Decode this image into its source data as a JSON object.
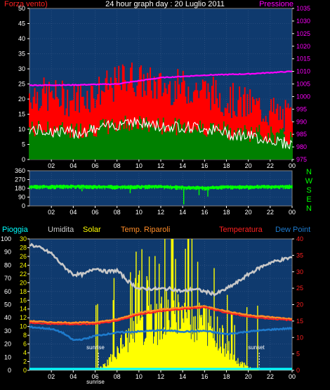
{
  "title": "24 hour graph day : 20 Luglio 2011",
  "colors": {
    "plot_bg": "#0f3a6e",
    "grid": "#3a5a8a",
    "wind_avg": "#008000",
    "wind_gust": "#ff0000",
    "wind_mean": "#ffffff",
    "pressure": "#ff00ff",
    "direction": "#00ff00",
    "tick": "#ffffff",
    "humidity": "#c8c8c8",
    "solar": "#ffff00",
    "temp_riparo": "#ff8c28",
    "temperatura": "#ff2020",
    "dew": "#1e7acc",
    "rain": "#00ffff"
  },
  "x_ticks": [
    "02",
    "04",
    "06",
    "08",
    "10",
    "12",
    "14",
    "16",
    "18",
    "20",
    "22",
    "00"
  ],
  "top": {
    "left_label": "Forza vento)",
    "right_label": "Pressione",
    "left_ticks": [
      "0",
      "5",
      "10",
      "15",
      "20",
      "25",
      "30",
      "35",
      "40",
      "45",
      "50"
    ],
    "right_ticks": [
      "975",
      "980",
      "985",
      "990",
      "995",
      "1000",
      "1005",
      "1010",
      "1015",
      "1020",
      "1025",
      "1030",
      "1035"
    ]
  },
  "mid": {
    "ticks": [
      "0",
      "90",
      "180",
      "270",
      "360"
    ],
    "compass": [
      "N",
      "W",
      "S",
      "E",
      "N"
    ]
  },
  "bottom": {
    "legend": [
      "Pioggia",
      "Umidita",
      "Solar",
      "Temp. Riparoli",
      "Temperatura",
      "Dew Point"
    ],
    "left_ticks": [
      "0",
      "10",
      "20",
      "30",
      "40",
      "50",
      "60",
      "70",
      "80",
      "90",
      "100"
    ],
    "solar_ticks": [
      "0",
      "2",
      "4",
      "6",
      "8",
      "10",
      "12",
      "14",
      "16",
      "18",
      "20",
      "22",
      "24",
      "26",
      "28",
      "30"
    ],
    "right_ticks": [
      "0",
      "5",
      "10",
      "15",
      "20",
      "25",
      "30",
      "35",
      "40"
    ],
    "sunrise": "sunrise",
    "sunset": "sunset",
    "sunrise_axis_label": "sunrise"
  },
  "chart_data": [
    {
      "type": "line",
      "xlabel": "",
      "ylabel": "Forza vento)",
      "x_range": [
        0,
        24
      ],
      "ylim": [
        0,
        50
      ],
      "y2lim": [
        975,
        1035
      ],
      "series": [
        {
          "name": "Forza vento)",
          "axis": "left",
          "x": [
            0,
            2,
            4,
            6,
            8,
            9,
            10,
            12,
            14,
            16,
            18,
            20,
            22,
            24
          ],
          "values": [
            18,
            17,
            16,
            18,
            21,
            24,
            22,
            20,
            20,
            19,
            16,
            14,
            12,
            9
          ]
        },
        {
          "name": "Pressione",
          "axis": "right",
          "x": [
            0,
            4,
            8,
            12,
            16,
            20,
            24
          ],
          "values": [
            1004.5,
            1004.6,
            1005.0,
            1007.5,
            1008.5,
            1009.0,
            1010.0
          ]
        }
      ]
    },
    {
      "type": "line",
      "ylim": [
        0,
        360
      ],
      "series": [
        {
          "name": "",
          "x": [
            0,
            4,
            8,
            12,
            14,
            16,
            18,
            20,
            24
          ],
          "values": [
            195,
            200,
            195,
            198,
            190,
            185,
            195,
            195,
            200
          ]
        }
      ]
    },
    {
      "type": "line",
      "legend": [
        "Pioggia",
        "Umidita",
        "Solar",
        "Temp. Riparoli",
        "Temperatura",
        "Dew Point"
      ],
      "ylim": [
        0,
        100
      ],
      "y_solar": [
        0,
        30
      ],
      "y2lim": [
        0,
        40
      ],
      "sunrise": 6.3,
      "sunset": 21.0,
      "series": [
        {
          "name": "Umidita",
          "axis": "left",
          "x": [
            0,
            1,
            2,
            3,
            4,
            5,
            6,
            7,
            8,
            9,
            10,
            11,
            12,
            13,
            14,
            15,
            16,
            17,
            18,
            19,
            20,
            21,
            22,
            23,
            24
          ],
          "values": [
            96,
            93,
            89,
            80,
            73,
            73,
            78,
            75,
            76,
            68,
            62,
            62,
            62,
            62,
            60,
            62,
            60,
            58,
            62,
            67,
            73,
            78,
            82,
            84,
            86
          ]
        },
        {
          "name": "Solar",
          "axis": "solar",
          "x": [
            0,
            6,
            7,
            8,
            9,
            10,
            11,
            12,
            13,
            14,
            15,
            16,
            17,
            18,
            19,
            20,
            21,
            22,
            24
          ],
          "values": [
            0,
            0,
            2,
            7,
            10,
            13,
            15,
            17,
            19,
            19,
            18,
            16,
            13,
            8,
            3,
            1,
            0,
            0,
            0
          ]
        },
        {
          "name": "Temp. Riparoli",
          "axis": "right",
          "x": [
            0,
            2,
            4,
            6,
            8,
            10,
            12,
            14,
            16,
            18,
            20,
            22,
            24
          ],
          "values": [
            15.0,
            14.6,
            14.5,
            14.6,
            15.5,
            17.5,
            18.5,
            19.0,
            19.5,
            18.0,
            16.8,
            16.2,
            15.6
          ]
        },
        {
          "name": "Temperatura",
          "axis": "right",
          "x": [
            0,
            2,
            4,
            6,
            8,
            10,
            12,
            14,
            16,
            18,
            20,
            22,
            24
          ],
          "values": [
            14.4,
            14.1,
            14.0,
            14.1,
            15.0,
            17.0,
            18.0,
            18.6,
            19.2,
            17.5,
            16.3,
            15.7,
            15.2
          ]
        },
        {
          "name": "Dew Point",
          "axis": "right",
          "x": [
            0,
            2,
            3,
            4,
            5,
            6,
            8,
            10,
            12,
            14,
            16,
            18,
            20,
            22,
            24
          ],
          "values": [
            13.2,
            12.6,
            11.5,
            9.2,
            9.5,
            10.5,
            11.5,
            11.8,
            12.2,
            11.8,
            12.0,
            11.0,
            11.8,
            12.4,
            12.8
          ]
        },
        {
          "name": "Pioggia",
          "axis": "left",
          "x": [
            0,
            24
          ],
          "values": [
            0,
            0
          ]
        }
      ]
    }
  ]
}
